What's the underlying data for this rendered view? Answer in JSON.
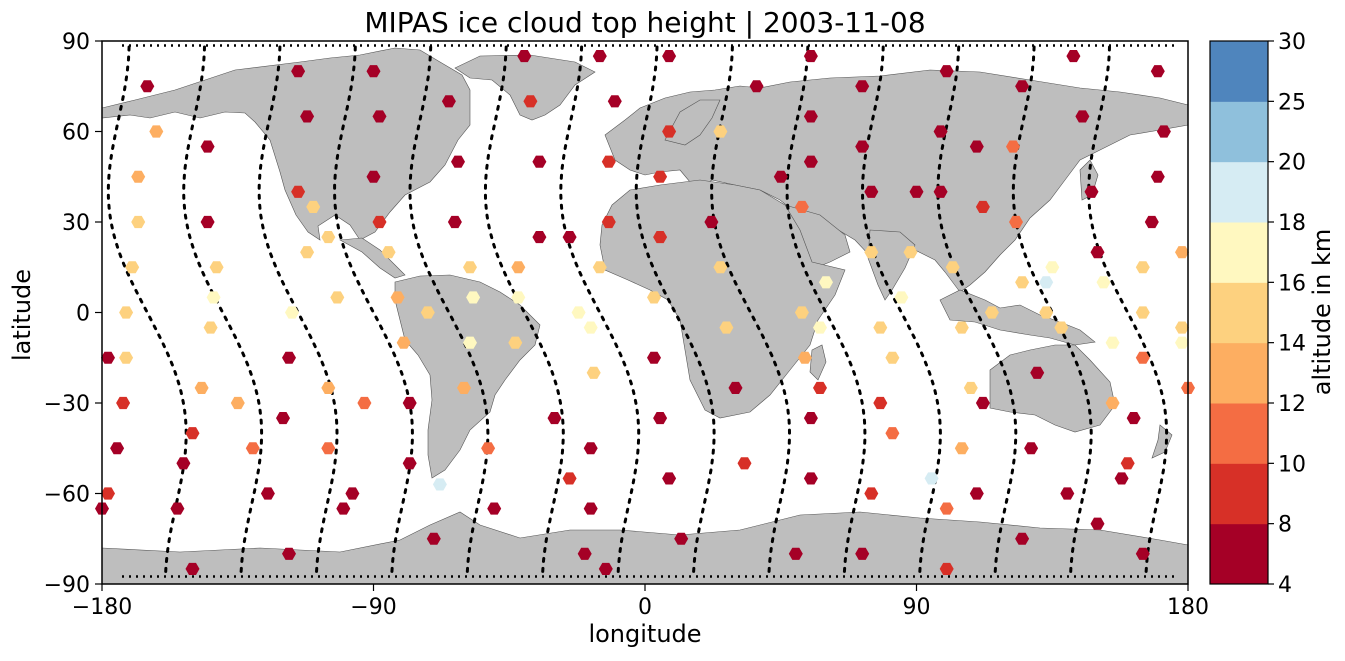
{
  "chart_data": {
    "type": "scatter",
    "title": "MIPAS ice cloud top height | 2003-11-08",
    "xlabel": "longitude",
    "ylabel": "latitude",
    "xlim": [
      -180,
      180
    ],
    "ylim": [
      -90,
      90
    ],
    "xticks": [
      "−180",
      "−90",
      "0",
      "90",
      "180"
    ],
    "xtick_values": [
      -180,
      -90,
      0,
      90,
      180
    ],
    "yticks": [
      "90",
      "60",
      "30",
      "0",
      "−30",
      "−60",
      "−90"
    ],
    "ytick_values": [
      90,
      60,
      30,
      0,
      -30,
      -60,
      -90
    ],
    "grid": false,
    "background": "world map, land #bebebe",
    "land_color": "#bebebe",
    "colorbar": {
      "label": "altitude in km",
      "ticks": [
        "4",
        "8",
        "10",
        "12",
        "14",
        "16",
        "18",
        "20",
        "25",
        "30"
      ],
      "bounds": [
        4,
        8,
        10,
        12,
        14,
        16,
        18,
        20,
        25,
        30
      ],
      "colors": [
        "#a50026",
        "#d73027",
        "#f46d43",
        "#fdae61",
        "#fee090",
        "#fff8c0",
        "#e0f3f8",
        "#abd9e9",
        "#74add1",
        "#4575b4",
        "#313695"
      ]
    },
    "orbit_tracks_x_at_equator": [
      -165,
      -140,
      -115,
      -90,
      -65,
      -40,
      -15,
      10,
      35,
      60,
      85,
      110,
      135,
      160
    ],
    "markers": [
      {
        "lon": -165,
        "lat": 75,
        "alt": 7
      },
      {
        "lon": -162,
        "lat": 60,
        "alt": 13
      },
      {
        "lon": -168,
        "lat": 45,
        "alt": 13
      },
      {
        "lon": -168,
        "lat": 30,
        "alt": 15
      },
      {
        "lon": -170,
        "lat": 15,
        "alt": 15
      },
      {
        "lon": -172,
        "lat": 0,
        "alt": 14
      },
      {
        "lon": -172,
        "lat": -15,
        "alt": 15
      },
      {
        "lon": -173,
        "lat": -30,
        "alt": 9
      },
      {
        "lon": -175,
        "lat": -45,
        "alt": 7
      },
      {
        "lon": -178,
        "lat": -60,
        "alt": 9
      },
      {
        "lon": -180,
        "lat": -65,
        "alt": 7
      },
      {
        "lon": -178,
        "lat": -15,
        "alt": 7
      },
      {
        "lon": -145,
        "lat": 55,
        "alt": 7
      },
      {
        "lon": -145,
        "lat": 30,
        "alt": 7
      },
      {
        "lon": -142,
        "lat": 15,
        "alt": 15
      },
      {
        "lon": -143,
        "lat": 5,
        "alt": 17
      },
      {
        "lon": -144,
        "lat": -5,
        "alt": 14
      },
      {
        "lon": -147,
        "lat": -25,
        "alt": 12
      },
      {
        "lon": -150,
        "lat": -40,
        "alt": 9
      },
      {
        "lon": -153,
        "lat": -50,
        "alt": 7
      },
      {
        "lon": -155,
        "lat": -65,
        "alt": 7
      },
      {
        "lon": -150,
        "lat": -85,
        "alt": 7
      },
      {
        "lon": -135,
        "lat": -30,
        "alt": 13
      },
      {
        "lon": -130,
        "lat": -45,
        "alt": 11
      },
      {
        "lon": -115,
        "lat": 80,
        "alt": 7
      },
      {
        "lon": -112,
        "lat": 65,
        "alt": 7
      },
      {
        "lon": -115,
        "lat": 40,
        "alt": 9
      },
      {
        "lon": -110,
        "lat": 35,
        "alt": 15
      },
      {
        "lon": -112,
        "lat": 20,
        "alt": 14
      },
      {
        "lon": -117,
        "lat": 0,
        "alt": 17
      },
      {
        "lon": -118,
        "lat": -15,
        "alt": 7
      },
      {
        "lon": -120,
        "lat": -35,
        "alt": 7
      },
      {
        "lon": -125,
        "lat": -60,
        "alt": 7
      },
      {
        "lon": -118,
        "lat": -80,
        "alt": 7
      },
      {
        "lon": -105,
        "lat": 25,
        "alt": 15
      },
      {
        "lon": -102,
        "lat": 5,
        "alt": 15
      },
      {
        "lon": -105,
        "lat": -25,
        "alt": 12
      },
      {
        "lon": -105,
        "lat": -45,
        "alt": 11
      },
      {
        "lon": -100,
        "lat": -65,
        "alt": 7
      },
      {
        "lon": -90,
        "lat": 80,
        "alt": 7
      },
      {
        "lon": -88,
        "lat": 65,
        "alt": 7
      },
      {
        "lon": -90,
        "lat": 45,
        "alt": 7
      },
      {
        "lon": -88,
        "lat": 30,
        "alt": 9
      },
      {
        "lon": -85,
        "lat": 20,
        "alt": 15
      },
      {
        "lon": -82,
        "lat": 5,
        "alt": 13
      },
      {
        "lon": -80,
        "lat": -10,
        "alt": 13
      },
      {
        "lon": -78,
        "lat": -30,
        "alt": 7
      },
      {
        "lon": -78,
        "lat": -50,
        "alt": 7
      },
      {
        "lon": -70,
        "lat": -75,
        "alt": 7
      },
      {
        "lon": -93,
        "lat": -30,
        "alt": 11
      },
      {
        "lon": -97,
        "lat": -60,
        "alt": 7
      },
      {
        "lon": -65,
        "lat": 70,
        "alt": 7
      },
      {
        "lon": -62,
        "lat": 50,
        "alt": 7
      },
      {
        "lon": -63,
        "lat": 30,
        "alt": 7
      },
      {
        "lon": -58,
        "lat": 15,
        "alt": 15
      },
      {
        "lon": -57,
        "lat": 5,
        "alt": 17
      },
      {
        "lon": -58,
        "lat": -10,
        "alt": 17
      },
      {
        "lon": -60,
        "lat": -25,
        "alt": 13
      },
      {
        "lon": -52,
        "lat": -45,
        "alt": 11
      },
      {
        "lon": -50,
        "lat": -65,
        "alt": 7
      },
      {
        "lon": -72,
        "lat": 0,
        "alt": 15
      },
      {
        "lon": -68,
        "lat": -57,
        "alt": 18
      },
      {
        "lon": -40,
        "lat": 85,
        "alt": 7
      },
      {
        "lon": -38,
        "lat": 70,
        "alt": 9
      },
      {
        "lon": -35,
        "lat": 50,
        "alt": 7
      },
      {
        "lon": -35,
        "lat": 25,
        "alt": 7
      },
      {
        "lon": -42,
        "lat": 15,
        "alt": 12
      },
      {
        "lon": -42,
        "lat": 5,
        "alt": 17
      },
      {
        "lon": -43,
        "lat": -10,
        "alt": 15
      },
      {
        "lon": -30,
        "lat": -35,
        "alt": 7
      },
      {
        "lon": -25,
        "lat": -55,
        "alt": 9
      },
      {
        "lon": -20,
        "lat": -80,
        "alt": 7
      },
      {
        "lon": -25,
        "lat": 25,
        "alt": 7
      },
      {
        "lon": -22,
        "lat": 0,
        "alt": 17
      },
      {
        "lon": -15,
        "lat": 85,
        "alt": 7
      },
      {
        "lon": -10,
        "lat": 70,
        "alt": 7
      },
      {
        "lon": -12,
        "lat": 50,
        "alt": 9
      },
      {
        "lon": -12,
        "lat": 30,
        "alt": 9
      },
      {
        "lon": -15,
        "lat": 15,
        "alt": 15
      },
      {
        "lon": -18,
        "lat": -5,
        "alt": 17
      },
      {
        "lon": -17,
        "lat": -20,
        "alt": 15
      },
      {
        "lon": -18,
        "lat": -45,
        "alt": 7
      },
      {
        "lon": -18,
        "lat": -65,
        "alt": 7
      },
      {
        "lon": -13,
        "lat": -85,
        "alt": 7
      },
      {
        "lon": 8,
        "lat": 85,
        "alt": 7
      },
      {
        "lon": 8,
        "lat": 60,
        "alt": 9
      },
      {
        "lon": 5,
        "lat": 45,
        "alt": 9
      },
      {
        "lon": 5,
        "lat": 25,
        "alt": 9
      },
      {
        "lon": 3,
        "lat": 5,
        "alt": 15
      },
      {
        "lon": 3,
        "lat": -15,
        "alt": 7
      },
      {
        "lon": 5,
        "lat": -35,
        "alt": 7
      },
      {
        "lon": 8,
        "lat": -55,
        "alt": 7
      },
      {
        "lon": 12,
        "lat": -75,
        "alt": 7
      },
      {
        "lon": 25,
        "lat": 60,
        "alt": 14
      },
      {
        "lon": 22,
        "lat": 30,
        "alt": 7
      },
      {
        "lon": 25,
        "lat": 15,
        "alt": 14
      },
      {
        "lon": 27,
        "lat": -5,
        "alt": 15
      },
      {
        "lon": 30,
        "lat": -25,
        "alt": 7
      },
      {
        "lon": 33,
        "lat": -50,
        "alt": 9
      },
      {
        "lon": 37,
        "lat": 75,
        "alt": 7
      },
      {
        "lon": 45,
        "lat": 45,
        "alt": 7
      },
      {
        "lon": 55,
        "lat": 85,
        "alt": 7
      },
      {
        "lon": 55,
        "lat": 65,
        "alt": 7
      },
      {
        "lon": 55,
        "lat": 50,
        "alt": 7
      },
      {
        "lon": 52,
        "lat": 35,
        "alt": 11
      },
      {
        "lon": 52,
        "lat": 0,
        "alt": 14
      },
      {
        "lon": 53,
        "lat": -15,
        "alt": 13
      },
      {
        "lon": 55,
        "lat": -35,
        "alt": 7
      },
      {
        "lon": 55,
        "lat": -55,
        "alt": 7
      },
      {
        "lon": 50,
        "lat": -80,
        "alt": 7
      },
      {
        "lon": 60,
        "lat": 10,
        "alt": 17
      },
      {
        "lon": 58,
        "lat": -5,
        "alt": 17
      },
      {
        "lon": 58,
        "lat": -25,
        "alt": 9
      },
      {
        "lon": 72,
        "lat": 75,
        "alt": 7
      },
      {
        "lon": 72,
        "lat": 55,
        "alt": 7
      },
      {
        "lon": 75,
        "lat": 40,
        "alt": 7
      },
      {
        "lon": 75,
        "lat": 20,
        "alt": 15
      },
      {
        "lon": 78,
        "lat": -5,
        "alt": 14
      },
      {
        "lon": 78,
        "lat": -30,
        "alt": 9
      },
      {
        "lon": 75,
        "lat": -60,
        "alt": 9
      },
      {
        "lon": 72,
        "lat": -80,
        "alt": 7
      },
      {
        "lon": 85,
        "lat": 5,
        "alt": 17
      },
      {
        "lon": 82,
        "lat": -15,
        "alt": 15
      },
      {
        "lon": 82,
        "lat": -40,
        "alt": 11
      },
      {
        "lon": 90,
        "lat": 40,
        "alt": 7
      },
      {
        "lon": 88,
        "lat": 20,
        "alt": 15
      },
      {
        "lon": 95,
        "lat": -55,
        "alt": 18
      },
      {
        "lon": 100,
        "lat": 80,
        "alt": 7
      },
      {
        "lon": 98,
        "lat": 60,
        "alt": 7
      },
      {
        "lon": 98,
        "lat": 40,
        "alt": 7
      },
      {
        "lon": 102,
        "lat": 15,
        "alt": 15
      },
      {
        "lon": 105,
        "lat": -5,
        "alt": 15
      },
      {
        "lon": 108,
        "lat": -25,
        "alt": 14
      },
      {
        "lon": 105,
        "lat": -45,
        "alt": 13
      },
      {
        "lon": 100,
        "lat": -65,
        "alt": 11
      },
      {
        "lon": 100,
        "lat": -85,
        "alt": 9
      },
      {
        "lon": 110,
        "lat": 55,
        "alt": 7
      },
      {
        "lon": 112,
        "lat": 35,
        "alt": 9
      },
      {
        "lon": 115,
        "lat": 0,
        "alt": 15
      },
      {
        "lon": 112,
        "lat": -30,
        "alt": 7
      },
      {
        "lon": 110,
        "lat": -60,
        "alt": 7
      },
      {
        "lon": 125,
        "lat": 75,
        "alt": 7
      },
      {
        "lon": 122,
        "lat": 55,
        "alt": 11
      },
      {
        "lon": 123,
        "lat": 30,
        "alt": 11
      },
      {
        "lon": 125,
        "lat": 10,
        "alt": 15
      },
      {
        "lon": 130,
        "lat": -20,
        "alt": 7
      },
      {
        "lon": 128,
        "lat": -45,
        "alt": 7
      },
      {
        "lon": 125,
        "lat": -75,
        "alt": 7
      },
      {
        "lon": 135,
        "lat": 15,
        "alt": 17
      },
      {
        "lon": 133,
        "lat": 10,
        "alt": 19
      },
      {
        "lon": 133,
        "lat": 0,
        "alt": 15
      },
      {
        "lon": 138,
        "lat": -5,
        "alt": 15
      },
      {
        "lon": 142,
        "lat": 85,
        "alt": 7
      },
      {
        "lon": 145,
        "lat": 65,
        "alt": 7
      },
      {
        "lon": 148,
        "lat": 40,
        "alt": 7
      },
      {
        "lon": 150,
        "lat": 20,
        "alt": 7
      },
      {
        "lon": 152,
        "lat": 10,
        "alt": 17
      },
      {
        "lon": 155,
        "lat": -10,
        "alt": 17
      },
      {
        "lon": 155,
        "lat": -30,
        "alt": 12
      },
      {
        "lon": 158,
        "lat": -55,
        "alt": 7
      },
      {
        "lon": 150,
        "lat": -70,
        "alt": 7
      },
      {
        "lon": 140,
        "lat": -60,
        "alt": 7
      },
      {
        "lon": 170,
        "lat": 80,
        "alt": 7
      },
      {
        "lon": 172,
        "lat": 60,
        "alt": 7
      },
      {
        "lon": 170,
        "lat": 45,
        "alt": 7
      },
      {
        "lon": 168,
        "lat": 30,
        "alt": 7
      },
      {
        "lon": 165,
        "lat": 15,
        "alt": 15
      },
      {
        "lon": 165,
        "lat": 0,
        "alt": 15
      },
      {
        "lon": 165,
        "lat": -15,
        "alt": 11
      },
      {
        "lon": 162,
        "lat": -35,
        "alt": 7
      },
      {
        "lon": 160,
        "lat": -50,
        "alt": 9
      },
      {
        "lon": 165,
        "lat": -80,
        "alt": 7
      },
      {
        "lon": 178,
        "lat": 20,
        "alt": 13
      },
      {
        "lon": 178,
        "lat": -5,
        "alt": 15
      },
      {
        "lon": 180,
        "lat": -25,
        "alt": 11
      },
      {
        "lon": 178,
        "lat": -10,
        "alt": 17
      }
    ]
  }
}
